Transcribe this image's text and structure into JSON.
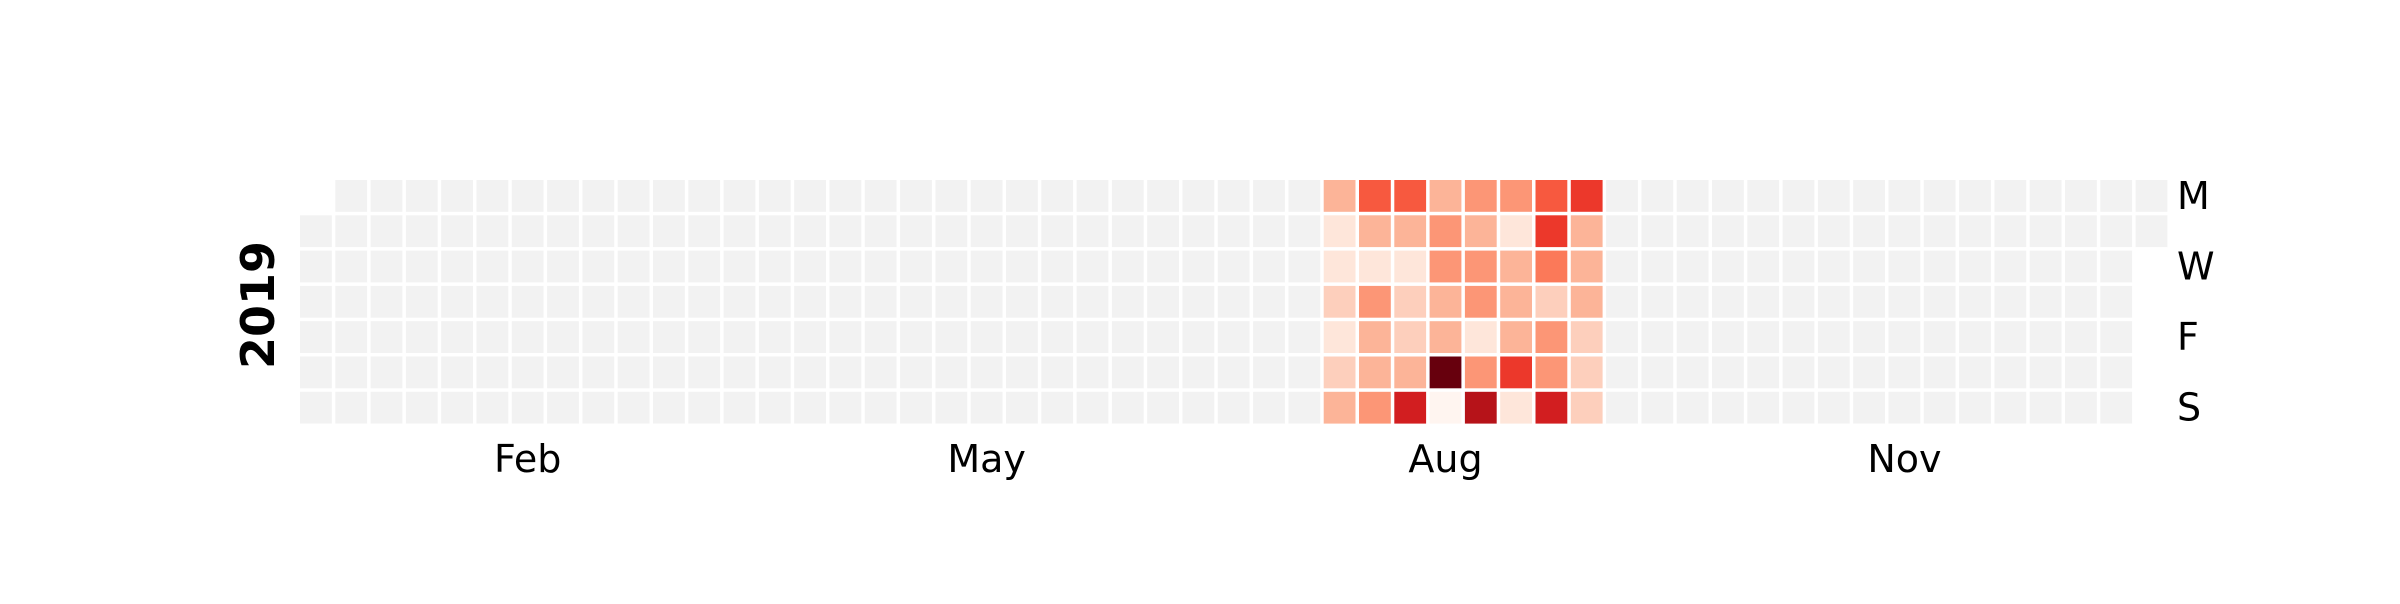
{
  "chart_data": {
    "type": "heatmap",
    "subtype": "calendar-heatmap",
    "year": "2019",
    "year_label": "2019",
    "month_tick_labels": [
      "Feb",
      "May",
      "Aug",
      "Nov"
    ],
    "month_tick_weeks": [
      6.5,
      19.5,
      32.5,
      45.5
    ],
    "weekday_tick_labels": [
      "M",
      "W",
      "F",
      "S"
    ],
    "weekday_tick_rows": [
      0,
      2,
      4,
      6
    ],
    "first_day_row": 1,
    "last_day_row": 1,
    "num_weeks": 53,
    "colormap": "Reds",
    "empty_color": "#f2f2f2",
    "value_range": [
      0,
      11
    ],
    "active_weeks_start": 29,
    "active_values_by_week": [
      [
        3,
        1,
        1,
        2,
        1,
        2,
        3
      ],
      [
        6,
        3,
        1,
        4,
        3,
        3,
        4
      ],
      [
        6,
        3,
        1,
        2,
        2,
        3,
        8
      ],
      [
        3,
        4,
        4,
        3,
        3,
        11,
        0
      ],
      [
        4,
        3,
        4,
        4,
        1,
        4,
        9
      ],
      [
        4,
        1,
        3,
        3,
        3,
        7,
        1
      ],
      [
        6,
        7,
        5,
        2,
        4,
        4,
        8
      ],
      [
        7,
        3,
        3,
        3,
        2,
        2,
        2
      ]
    ]
  },
  "colors": {
    "background": "#ffffff",
    "grid_lines": "#ffffff"
  }
}
